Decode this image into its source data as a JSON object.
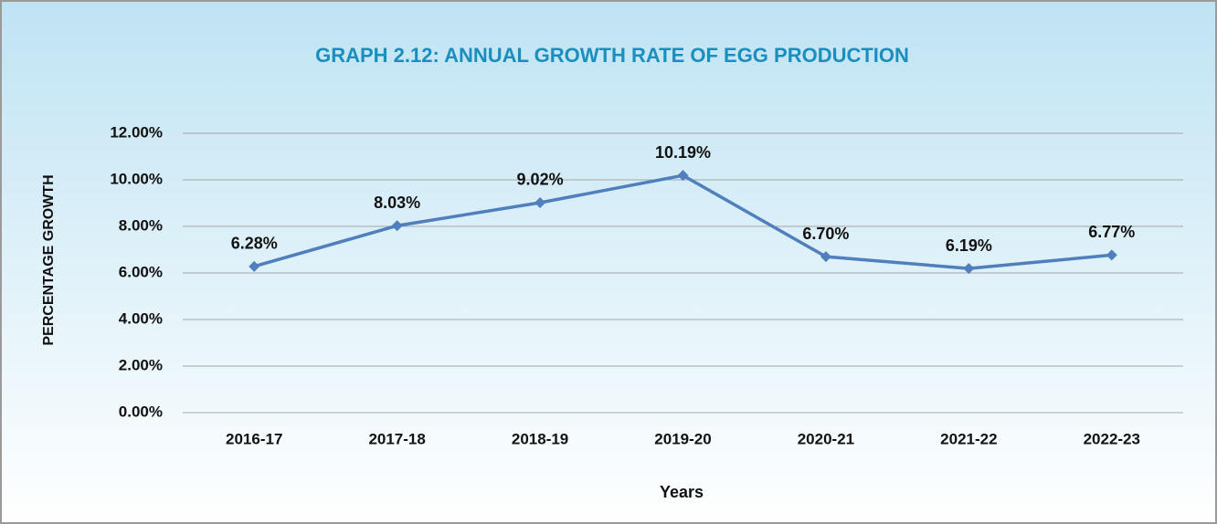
{
  "chart_data": {
    "type": "line",
    "title": "GRAPH 2.12: ANNUAL GROWTH RATE OF EGG PRODUCTION",
    "y_label": "PERCENTAGE GROWTH",
    "x_label": "Years",
    "categories": [
      "2016-17",
      "2017-18",
      "2018-19",
      "2019-20",
      "2020-21",
      "2021-22",
      "2022-23"
    ],
    "values": [
      6.28,
      8.03,
      9.02,
      10.19,
      6.7,
      6.19,
      6.77
    ],
    "value_labels": [
      "6.28%",
      "8.03%",
      "9.02%",
      "10.19%",
      "6.70%",
      "6.19%",
      "6.77%"
    ],
    "color": "#4f7fbd",
    "ylim": [
      0,
      12
    ],
    "yticks": [
      {
        "value": 0,
        "label": "0.00%"
      },
      {
        "value": 2,
        "label": "2.00%"
      },
      {
        "value": 4,
        "label": "4.00%"
      },
      {
        "value": 6,
        "label": "6.00%"
      },
      {
        "value": 8,
        "label": "8.00%"
      },
      {
        "value": 10,
        "label": "10.00%"
      },
      {
        "value": 12,
        "label": "12.00%"
      }
    ],
    "grid": true
  }
}
